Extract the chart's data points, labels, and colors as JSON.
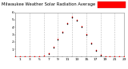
{
  "title": "Milwaukee Weather Solar Radiation Average  per Hour  (24 Hours)",
  "hours": [
    0,
    1,
    2,
    3,
    4,
    5,
    6,
    7,
    8,
    9,
    10,
    11,
    12,
    13,
    14,
    15,
    16,
    17,
    18,
    19,
    20,
    21,
    22,
    23
  ],
  "solar_avg": [
    0,
    0,
    0,
    0,
    0,
    2,
    5,
    20,
    65,
    115,
    160,
    215,
    255,
    235,
    195,
    145,
    90,
    42,
    10,
    2,
    0,
    0,
    0,
    0
  ],
  "solar_cur_hours": [
    7,
    8,
    9,
    10,
    11,
    12,
    13,
    14,
    15,
    16,
    17,
    18
  ],
  "solar_cur_vals": [
    18,
    58,
    108,
    155,
    208,
    248,
    228,
    188,
    138,
    82,
    36,
    7
  ],
  "dot_color_avg": "#ff0000",
  "dot_color_cur": "#000000",
  "background": "#ffffff",
  "grid_color": "#bbbbbb",
  "grid_hours": [
    0,
    3,
    6,
    9,
    12,
    15,
    18,
    21
  ],
  "ylim": [
    0,
    280
  ],
  "xlim": [
    0,
    23
  ],
  "title_fontsize": 3.8,
  "tick_fontsize": 3.2,
  "legend_box_color": "#ff0000",
  "ytick_labels": [
    "1",
    "2",
    "3",
    "4",
    "5",
    "6"
  ],
  "ytick_vals": [
    47,
    94,
    141,
    188,
    235,
    282
  ]
}
